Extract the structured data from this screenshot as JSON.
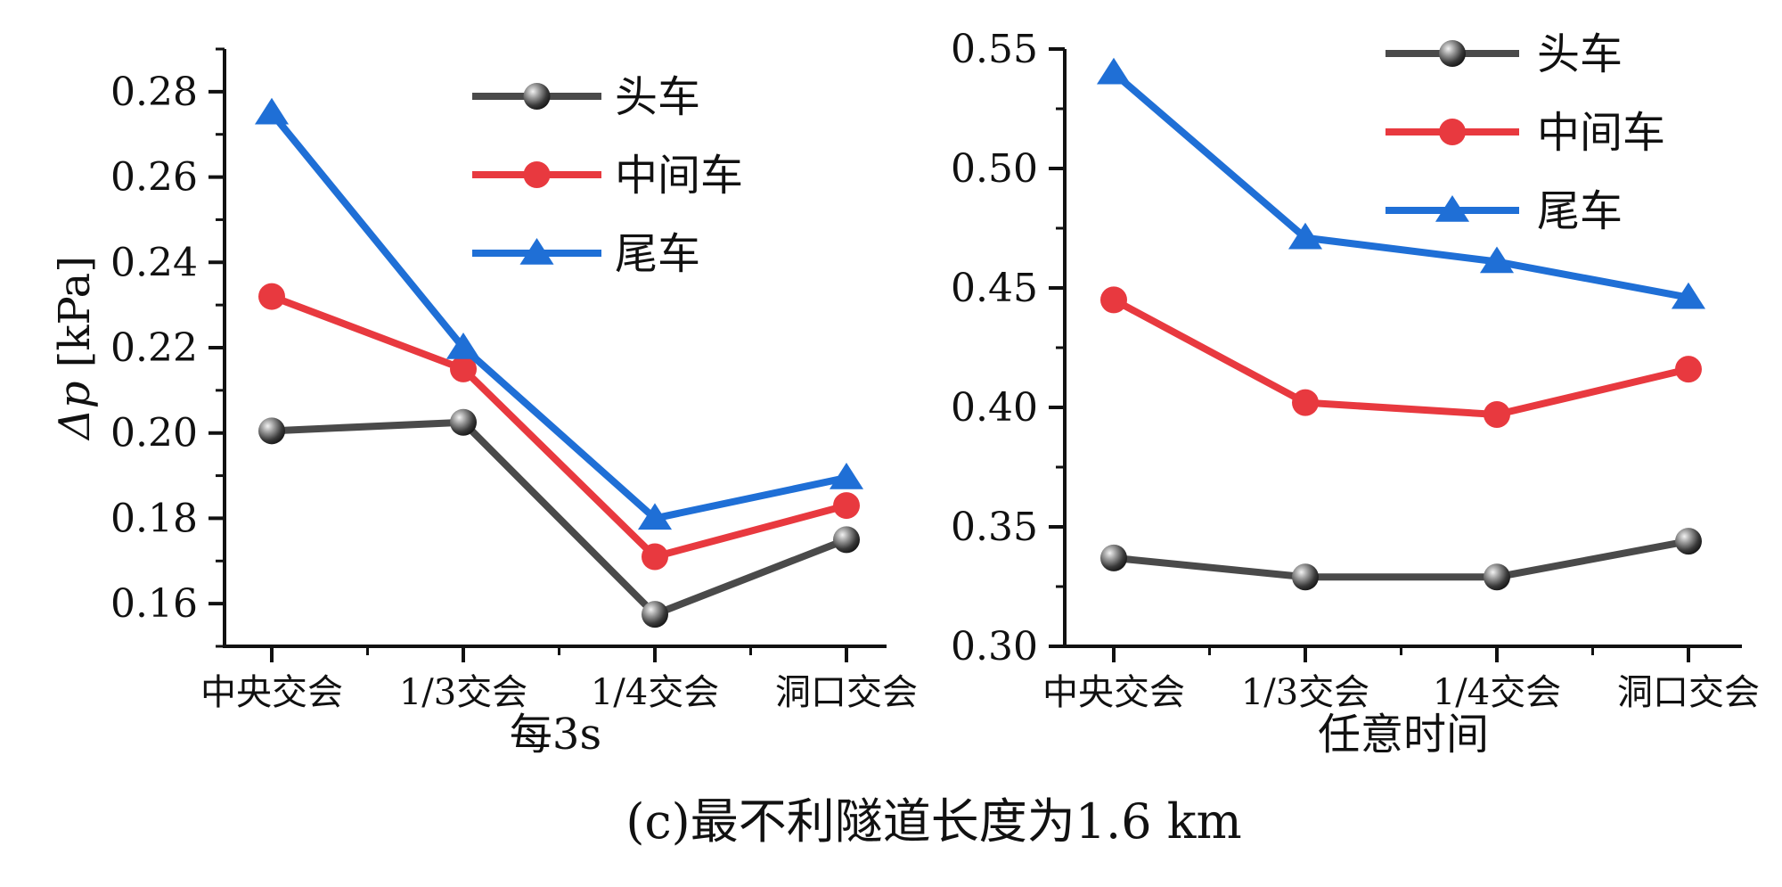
{
  "caption": "(c)最不利隧道长度为1.6 km",
  "colors": {
    "head": "#4a4a4a",
    "middle": "#e8393f",
    "tail": "#1f6fd6",
    "axis": "#111111"
  },
  "chart_data": [
    {
      "type": "line",
      "title": "",
      "xlabel": "每3s",
      "ylabel_symbol": "Δp",
      "ylabel_unit": "[kPa]",
      "categories": [
        "中央交会",
        "1/3交会",
        "1/4交会",
        "洞口交会"
      ],
      "ylim": [
        0.15,
        0.29
      ],
      "yticks": [
        "0.16",
        "0.18",
        "0.20",
        "0.22",
        "0.24",
        "0.26",
        "0.28"
      ],
      "legend_position": "top-right",
      "series": [
        {
          "name": "头车",
          "marker": "sphere",
          "color_key": "head",
          "values": [
            0.2005,
            0.2025,
            0.1575,
            0.175
          ]
        },
        {
          "name": "中间车",
          "marker": "circle",
          "color_key": "middle",
          "values": [
            0.232,
            0.215,
            0.171,
            0.183
          ]
        },
        {
          "name": "尾车",
          "marker": "triangle",
          "color_key": "tail",
          "values": [
            0.275,
            0.22,
            0.18,
            0.1895
          ]
        }
      ]
    },
    {
      "type": "line",
      "title": "",
      "xlabel": "任意时间",
      "ylabel_symbol": "",
      "ylabel_unit": "",
      "categories": [
        "中央交会",
        "1/3交会",
        "1/4交会",
        "洞口交会"
      ],
      "ylim": [
        0.3,
        0.55
      ],
      "yticks": [
        "0.30",
        "0.35",
        "0.40",
        "0.45",
        "0.50",
        "0.55"
      ],
      "legend_position": "top-right",
      "series": [
        {
          "name": "头车",
          "marker": "sphere",
          "color_key": "head",
          "values": [
            0.337,
            0.329,
            0.329,
            0.344
          ]
        },
        {
          "name": "中间车",
          "marker": "circle",
          "color_key": "middle",
          "values": [
            0.445,
            0.402,
            0.397,
            0.416
          ]
        },
        {
          "name": "尾车",
          "marker": "triangle",
          "color_key": "tail",
          "values": [
            0.54,
            0.471,
            0.461,
            0.446
          ]
        }
      ]
    }
  ]
}
